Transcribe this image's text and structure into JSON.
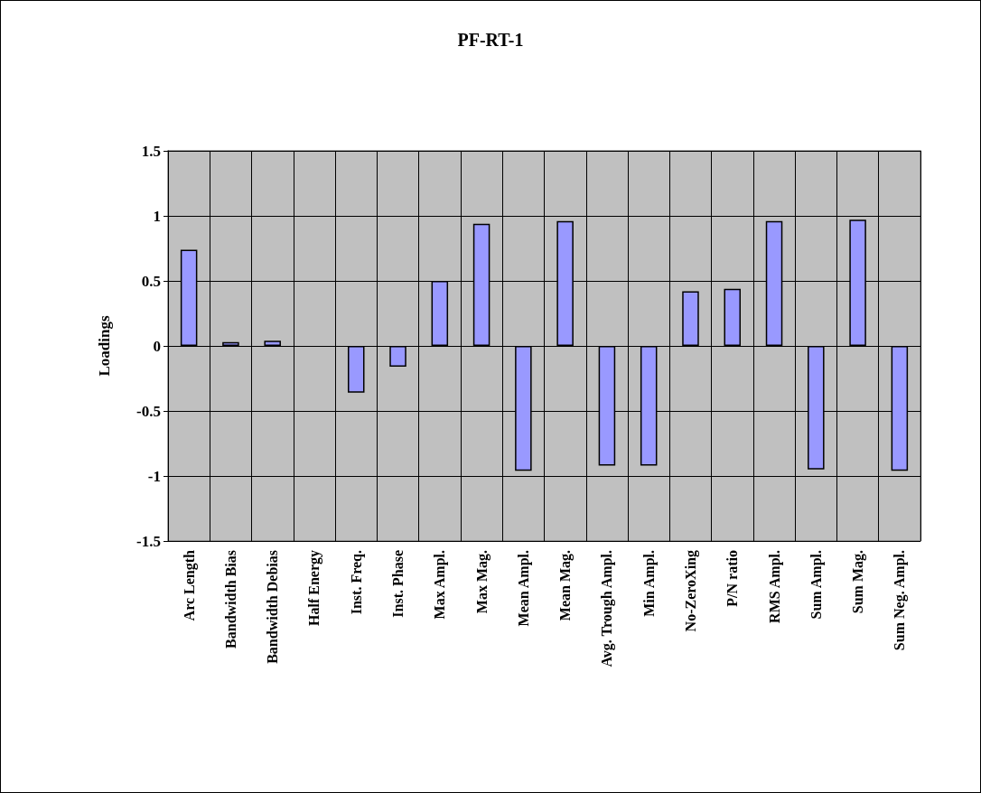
{
  "chart_data": {
    "type": "bar",
    "title": "PF-RT-1",
    "ylabel": "Loadings",
    "categories": [
      "Arc Length",
      "Bandwidth Bias",
      "Bandwidth Debias",
      "Half Energy",
      "Inst. Freq.",
      "Inst. Phase",
      "Max Ampl.",
      "Max Mag.",
      "Mean Ampl.",
      "Mean Mag.",
      "Avg. Trough Ampl.",
      "Min Ampl.",
      "No-ZeroXing",
      "P/N ratio",
      "RMS Ampl.",
      "Sum Ampl.",
      "Sum Mag.",
      "Sum Neg. Ampl."
    ],
    "values": [
      0.74,
      0.03,
      0.04,
      0,
      -0.36,
      -0.16,
      0.5,
      0.94,
      -0.96,
      0.96,
      -0.92,
      -0.92,
      0.42,
      0.44,
      0.96,
      -0.95,
      0.97,
      -0.96
    ],
    "color": "#9999ff",
    "ylim": [
      -1.5,
      1.5
    ],
    "yticks": [
      -1.5,
      -1,
      -0.5,
      0,
      0.5,
      1,
      1.5
    ],
    "grid": true
  }
}
